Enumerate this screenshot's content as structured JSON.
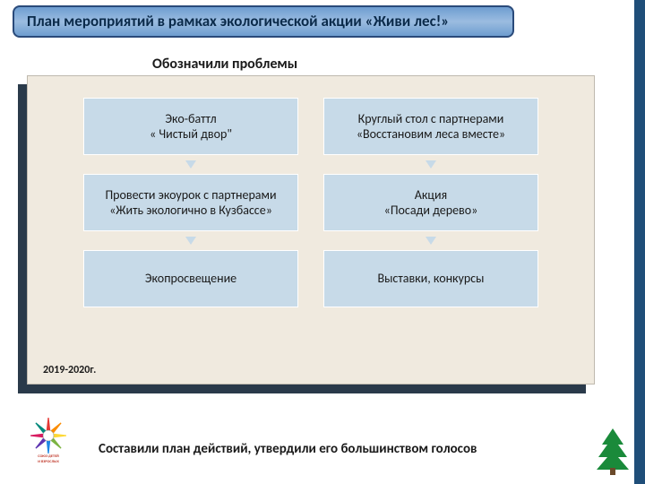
{
  "title": "План мероприятий в рамках экологической акции «Живи лес!»",
  "subtitle": "Обозначили проблемы",
  "year_label": "2019-2020г.",
  "footer": "Составили план действий, утвердили его большинством голосов",
  "diagram": {
    "type": "flowchart",
    "node_bg": "#c7dae8",
    "node_border": "#ffffff",
    "panel_bg": "#f0eadf",
    "shadow_bg": "#2a3a4a",
    "arrow_color": "#c7dae8",
    "columns": [
      {
        "nodes": [
          {
            "lines": [
              "Эко-баттл",
              "« Чистый двор\""
            ]
          },
          {
            "lines": [
              "Провести экоурок с партнерами  «Жить экологично в Кузбассе»"
            ]
          },
          {
            "lines": [
              "Экопросвещение"
            ]
          }
        ]
      },
      {
        "nodes": [
          {
            "lines": [
              "Круглый стол с партнерами «Восстановим леса вместе»"
            ]
          },
          {
            "lines": [
              "Акция",
              "«Посади дерево»"
            ]
          },
          {
            "lines": [
              "Выставки, конкурсы"
            ]
          }
        ]
      }
    ]
  },
  "colors": {
    "title_gradient_top": "#6e9dd0",
    "title_gradient_mid": "#9bbce0",
    "title_border": "#2a4a7a",
    "title_text": "#0a2a4a",
    "strip": "#1f4e79"
  },
  "logo": {
    "name": "soyuz-detey-i-vzroslykh",
    "caption": "СОЮЗ ДЕТЕЙ И ВЗРОСЛЫХ",
    "ray_colors": [
      "#e53935",
      "#fb8c00",
      "#fdd835",
      "#7cb342",
      "#1e88e5",
      "#5e35b1",
      "#d81b60",
      "#00897b"
    ]
  },
  "tree_colors": {
    "foliage": "#1a8a3a",
    "trunk": "#6b4a2a"
  }
}
